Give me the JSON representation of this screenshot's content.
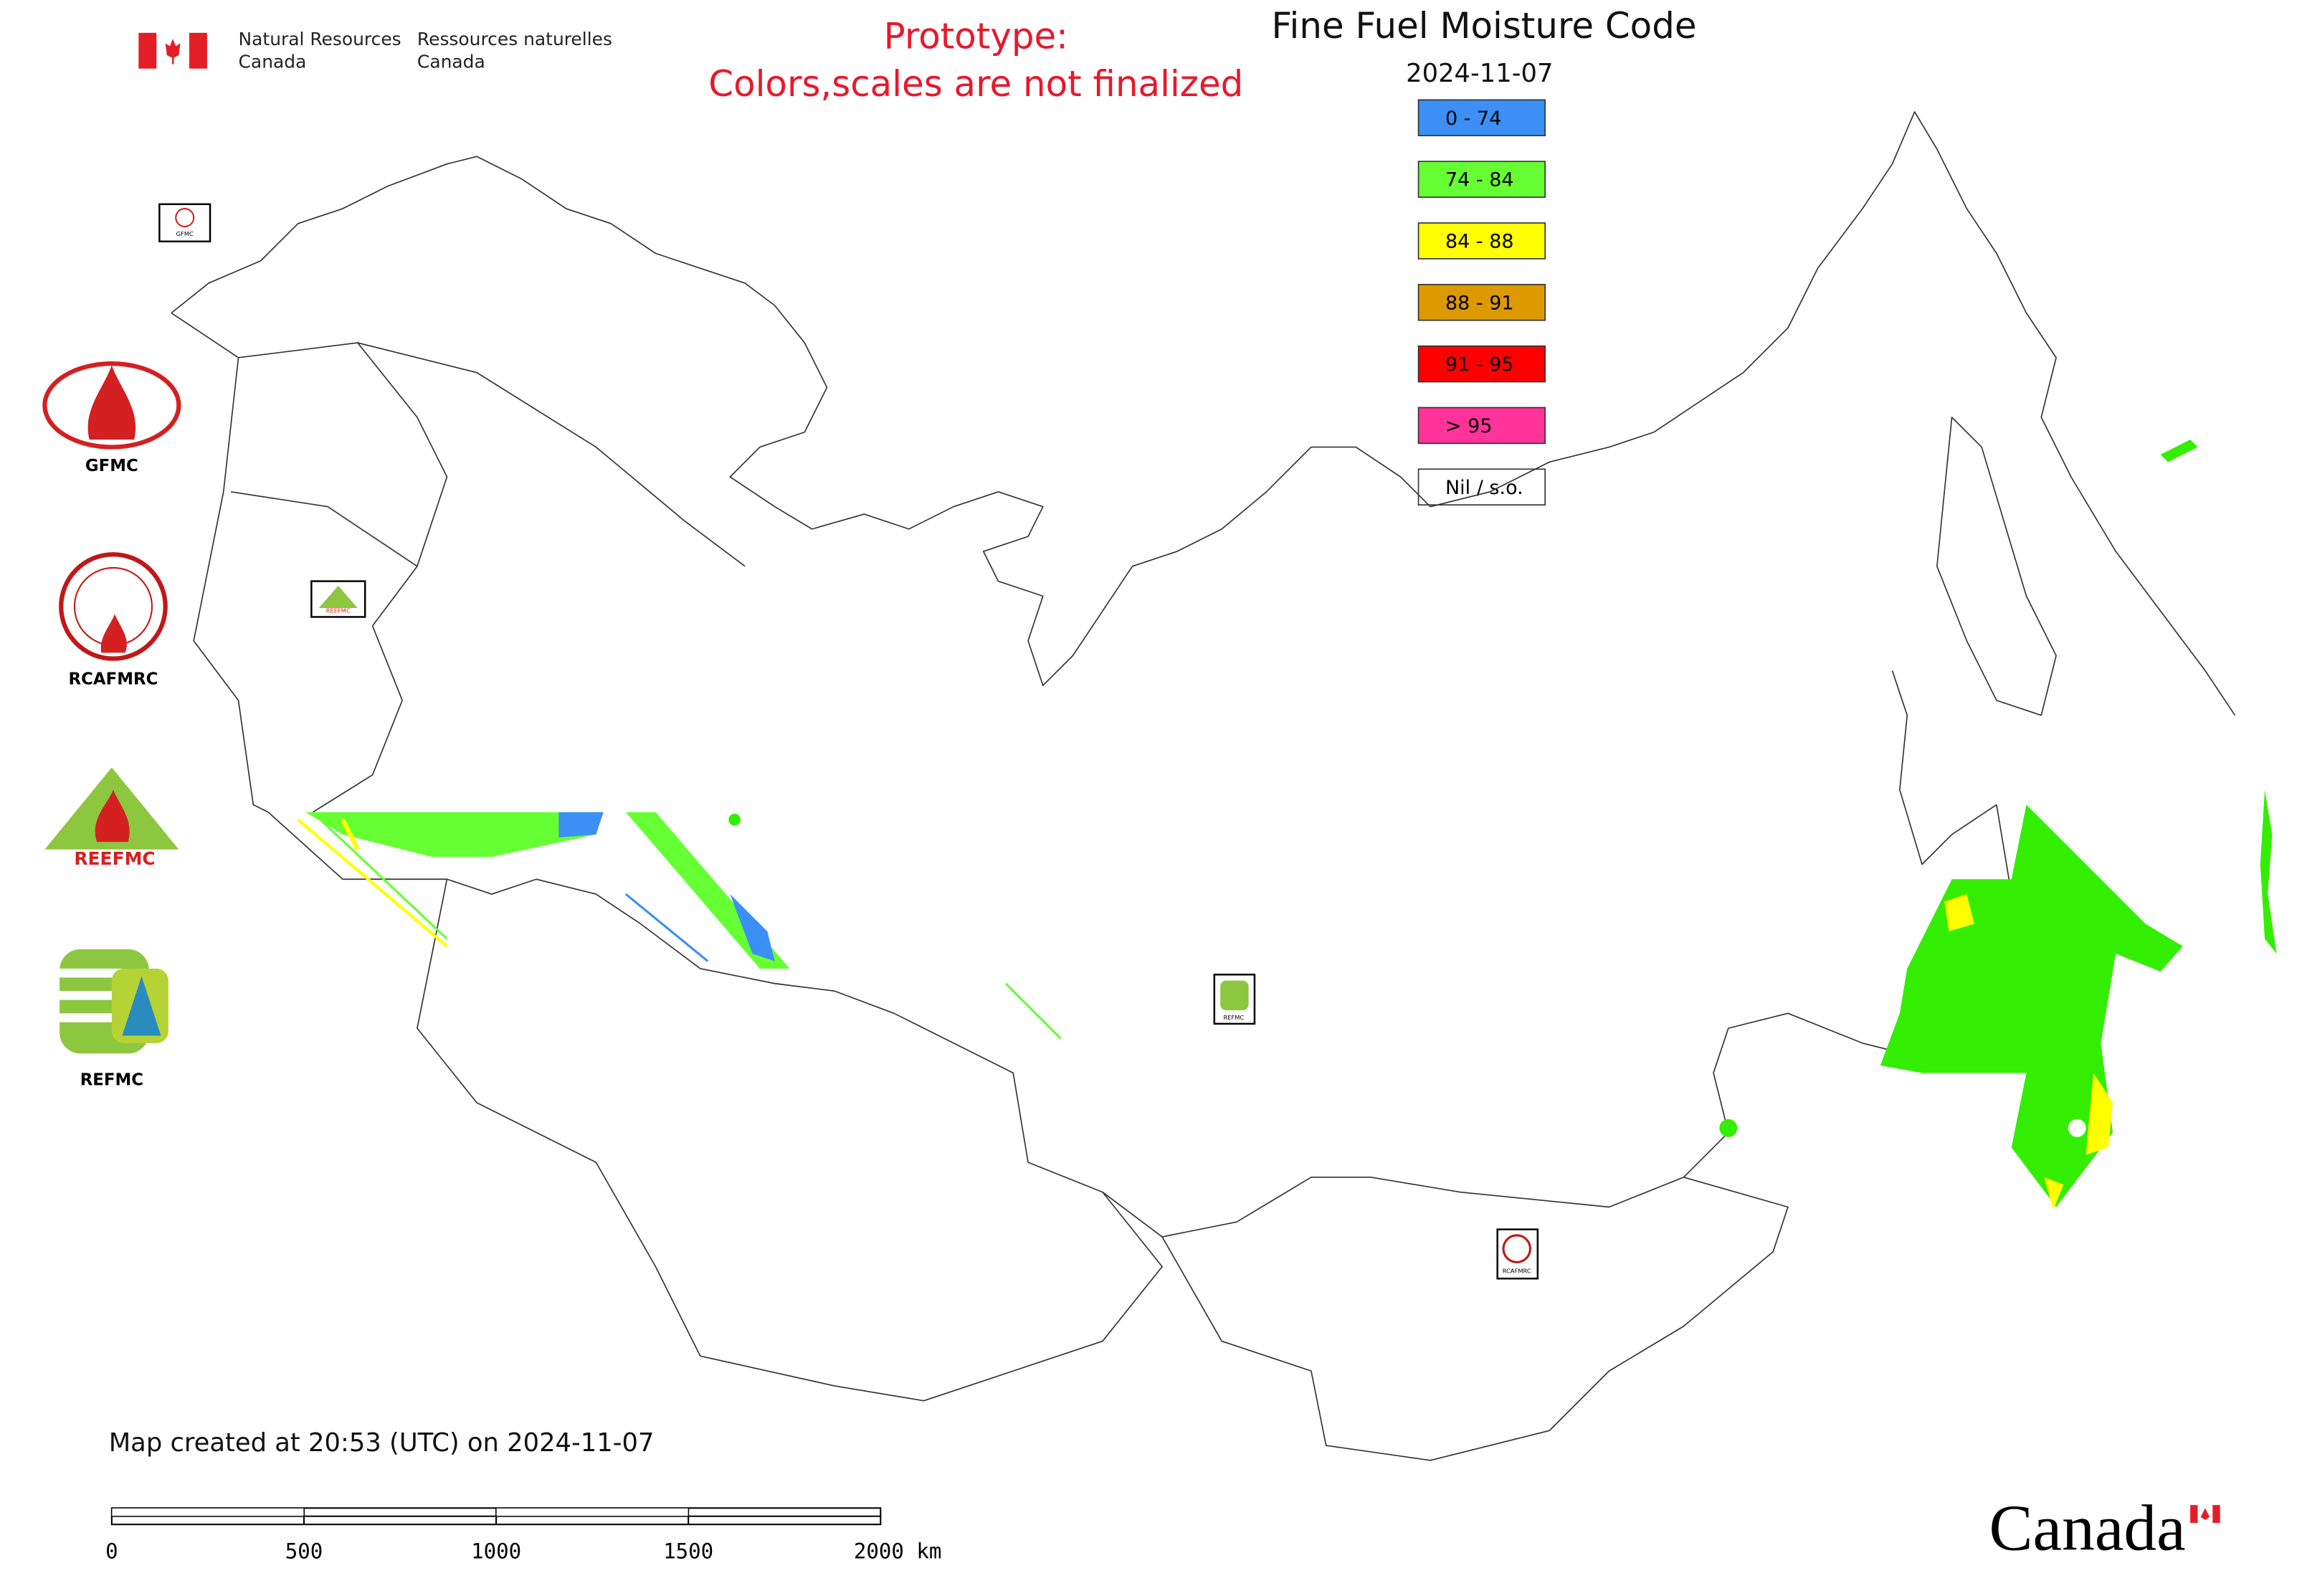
{
  "header": {
    "org_en": [
      "Natural Resources",
      "Canada"
    ],
    "org_fr": [
      "Ressources naturelles",
      "Canada"
    ],
    "notice": [
      "Prototype:",
      "Colors,scales are not finalized"
    ]
  },
  "title": "Fine Fuel Moisture Code",
  "date": "2024-11-07",
  "legend": [
    {
      "label": "0 - 74",
      "color": "#3b8ff5"
    },
    {
      "label": "74 - 84",
      "color": "#66ff33"
    },
    {
      "label": "84 - 88",
      "color": "#ffff00"
    },
    {
      "label": "88 - 91",
      "color": "#dd9900"
    },
    {
      "label": "91 - 95",
      "color": "#ff0000"
    },
    {
      "label": "> 95",
      "color": "#ff3399"
    },
    {
      "label": "Nil / s.o.",
      "color": "#ffffff"
    }
  ],
  "logos": [
    "GFMC",
    "RCAFMRC",
    "REEFMC",
    "REFMC"
  ],
  "footer": "Map created at 20:53 (UTC) on 2024-11-07",
  "scale_bar": [
    "0",
    "500",
    "1000",
    "1500",
    "2000 km"
  ],
  "wordmark": "Canada"
}
